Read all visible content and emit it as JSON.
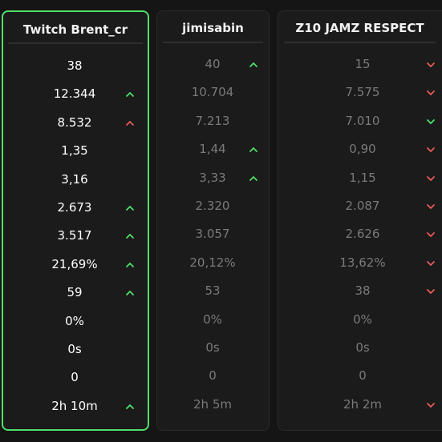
{
  "columns": [
    {
      "title": "Twitch Brent_cr",
      "values": [
        "38",
        "12.344",
        "8.532",
        "1,35",
        "3,16",
        "2.673",
        "3.517",
        "21,69%",
        "59",
        "0%",
        "0s",
        "0",
        "2h 10m"
      ]
    },
    {
      "title": "jimisabin",
      "values": [
        "40",
        "10.704",
        "7.213",
        "1,44",
        "3,33",
        "2.320",
        "3.057",
        "20,12%",
        "53",
        "0%",
        "0s",
        "0",
        "2h 5m"
      ]
    },
    {
      "title": "Z10 JAMZ RESPECT",
      "values": [
        "15",
        "7.575",
        "7.010",
        "0,90",
        "1,15",
        "2.087",
        "2.626",
        "13,62%",
        "38",
        "0%",
        "0s",
        "0",
        "2h 2m"
      ]
    }
  ]
}
